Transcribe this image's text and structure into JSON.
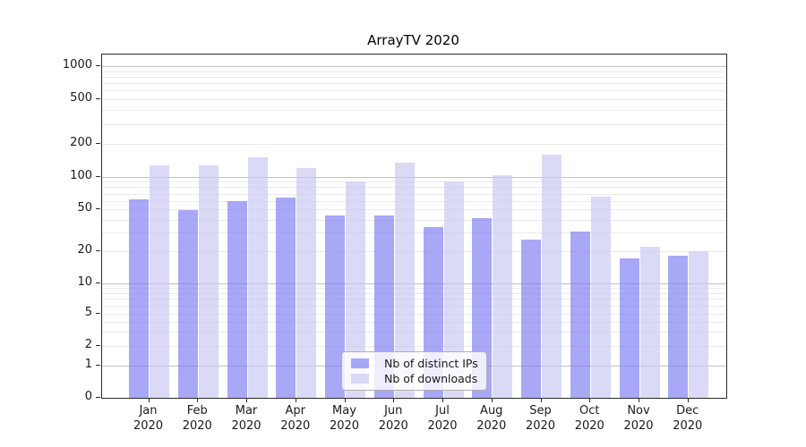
{
  "title": "ArrayTV 2020",
  "colors": {
    "ips_bar": "rgba(121,121,243,0.65)",
    "downloads_bar": "rgba(198,198,243,0.65)",
    "grid_major": "#c2c2c2",
    "grid_minor": "#ebebeb",
    "spine": "#2b2b2b",
    "text": "#1a1a1a"
  },
  "chart_data": {
    "type": "bar",
    "title": "ArrayTV 2020",
    "months": [
      "Jan",
      "Feb",
      "Mar",
      "Apr",
      "May",
      "Jun",
      "Jul",
      "Aug",
      "Sep",
      "Oct",
      "Nov",
      "Dec"
    ],
    "year": "2020",
    "categories": [
      "Jan 2020",
      "Feb 2020",
      "Mar 2020",
      "Apr 2020",
      "May 2020",
      "Jun 2020",
      "Jul 2020",
      "Aug 2020",
      "Sep 2020",
      "Oct 2020",
      "Nov 2020",
      "Dec 2020"
    ],
    "series": [
      {
        "name": "Nb of distinct IPs",
        "key": "ips",
        "values": [
          62,
          49,
          60,
          64,
          44,
          44,
          34,
          41,
          26,
          31,
          17,
          18
        ]
      },
      {
        "name": "Nb of downloads",
        "key": "downloads",
        "values": [
          126,
          128,
          150,
          121,
          91,
          134,
          91,
          104,
          158,
          65,
          22,
          20
        ]
      }
    ],
    "yscale": "log-with-zero",
    "y_ticks": [
      0,
      1,
      2,
      5,
      10,
      20,
      50,
      100,
      200,
      500,
      1000
    ],
    "ylim": [
      0,
      1300
    ],
    "grid": true,
    "legend_position": "lower-center",
    "xlabel": "",
    "ylabel": ""
  }
}
